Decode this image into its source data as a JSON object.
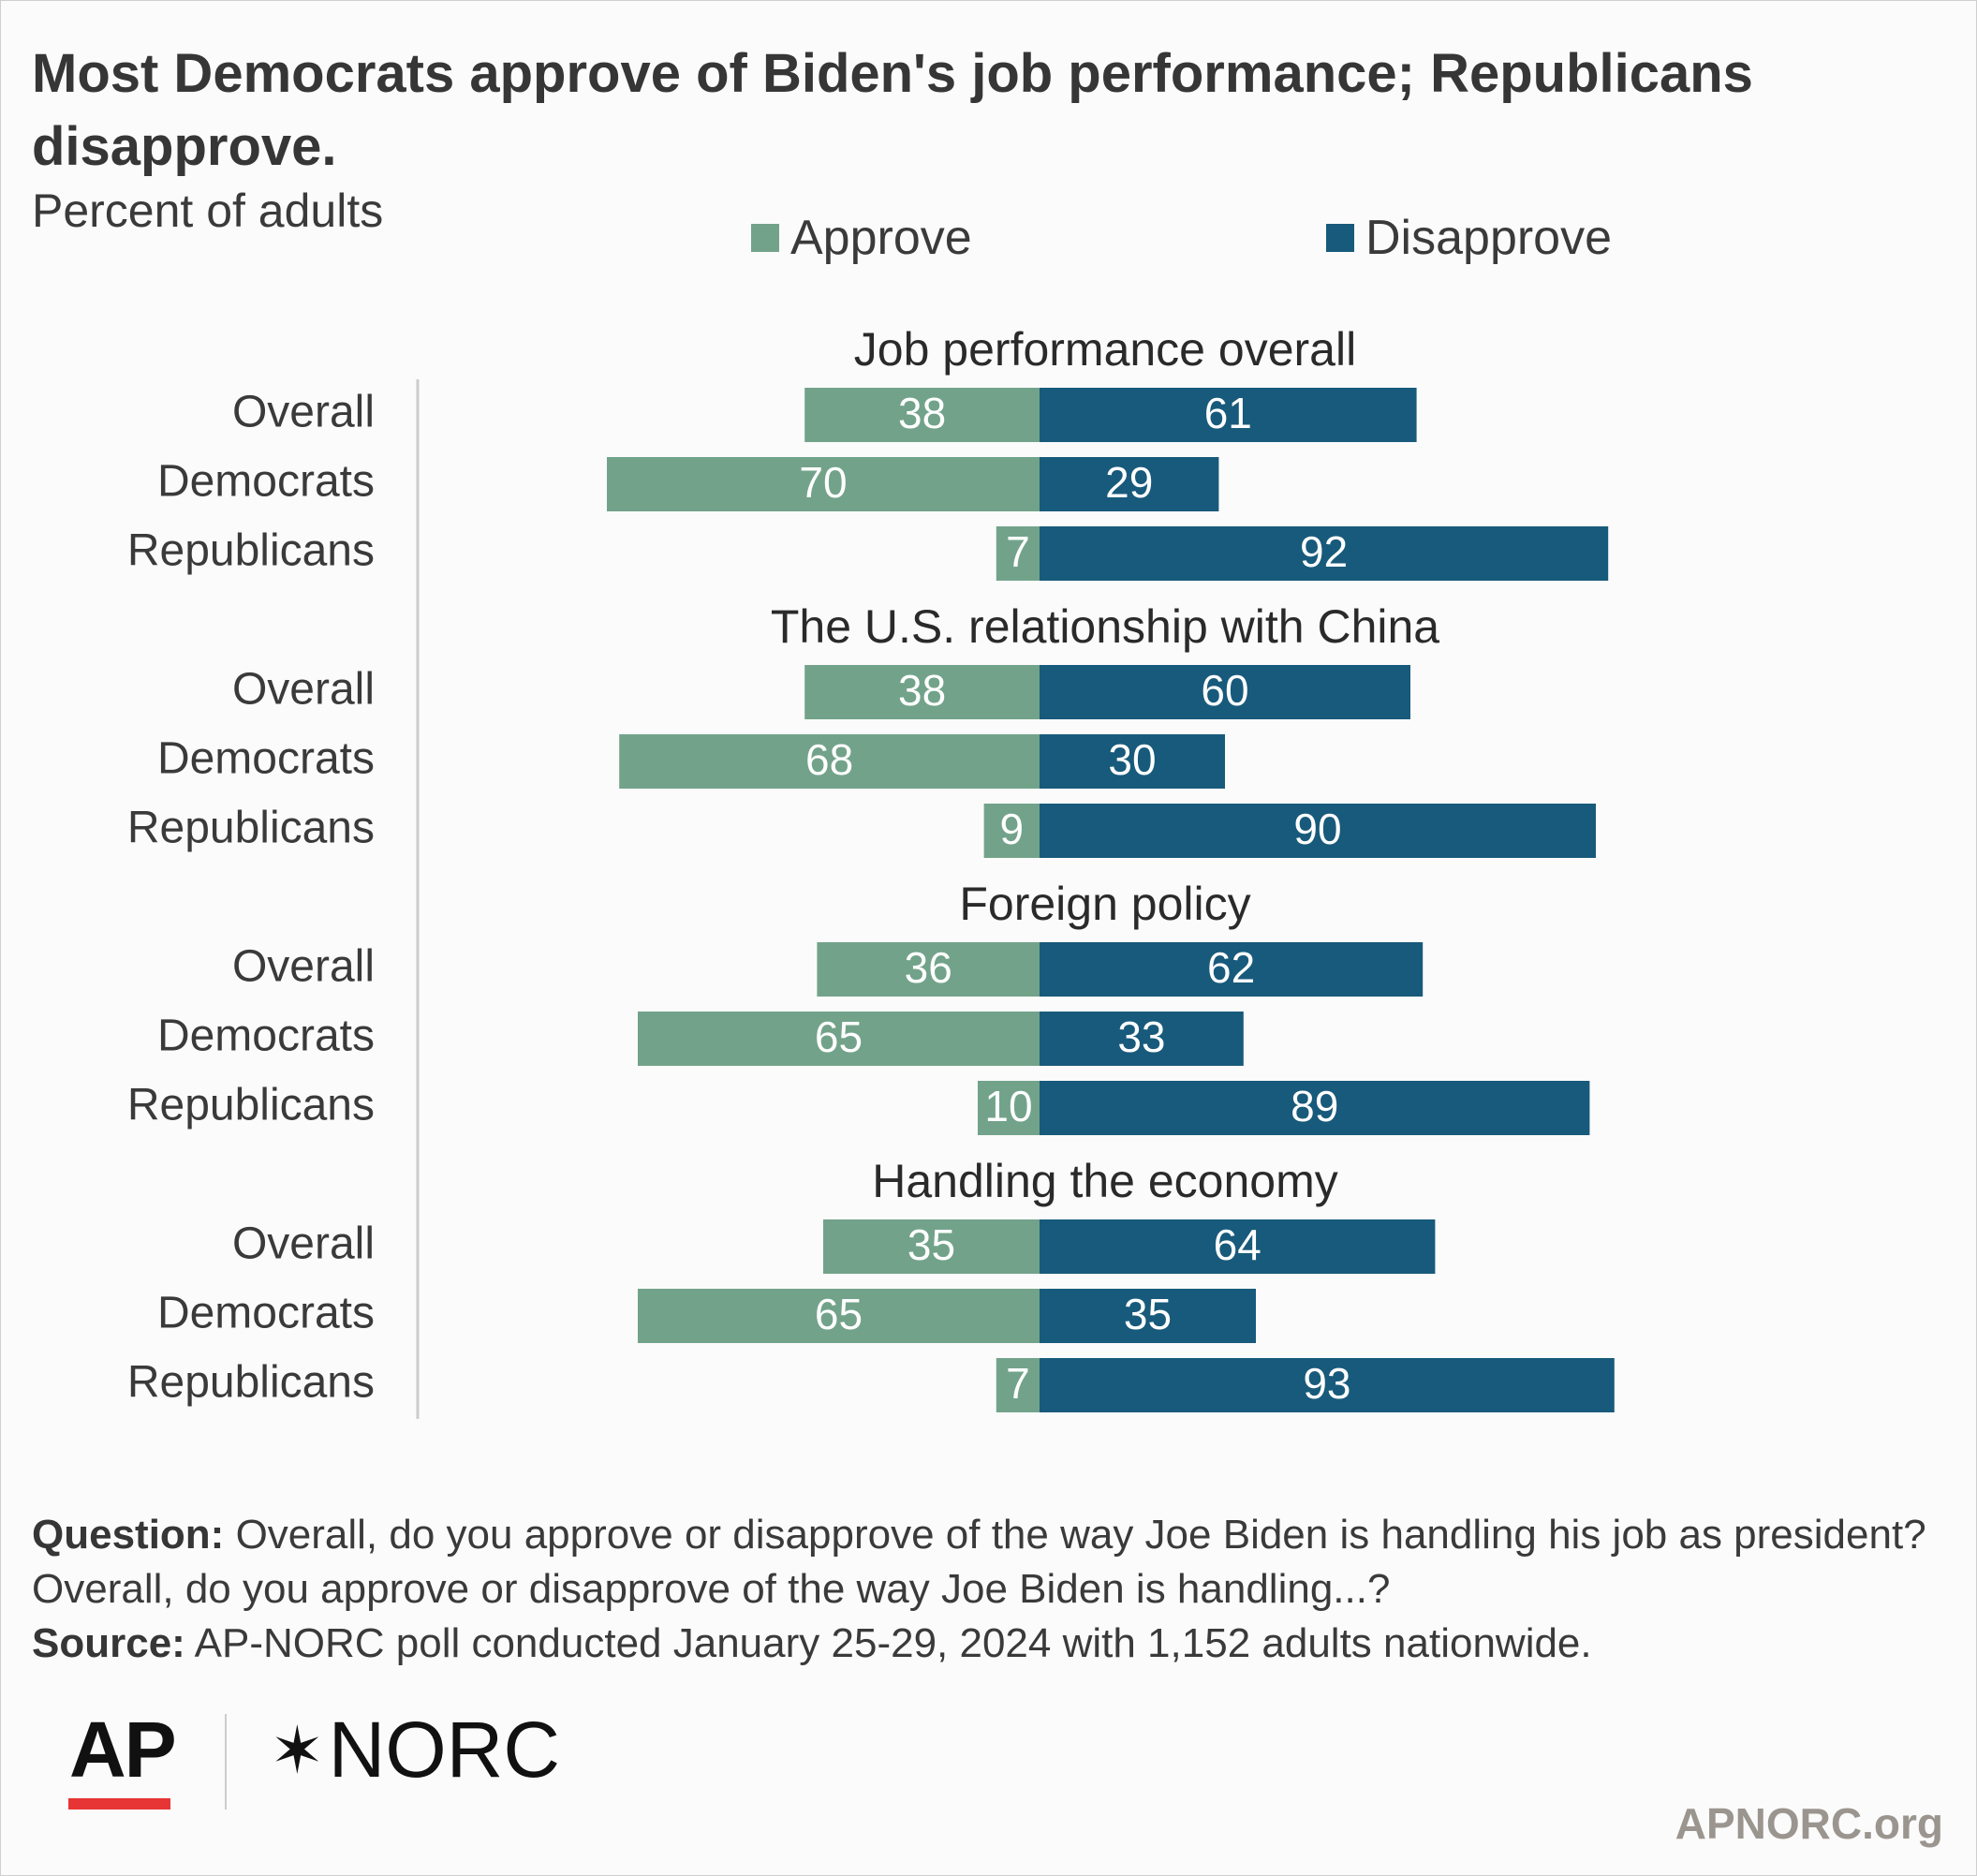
{
  "title": "Most Democrats approve of Biden's job performance; Republicans disapprove.",
  "subtitle": "Percent of adults",
  "legend": [
    {
      "label": "Approve",
      "color": "#72a38a"
    },
    {
      "label": "Disapprove",
      "color": "#185a7b"
    }
  ],
  "colors": {
    "approve": "#72a38a",
    "disapprove": "#185a7b",
    "bar_label": "#ffffff",
    "axis": "#cccccc"
  },
  "chart_data": {
    "type": "bar",
    "orientation": "horizontal-diverging",
    "series_names": [
      "Approve",
      "Disapprove"
    ],
    "groups": [
      {
        "title": "Job performance overall",
        "rows": [
          {
            "label": "Overall",
            "approve": 38,
            "disapprove": 61
          },
          {
            "label": "Democrats",
            "approve": 70,
            "disapprove": 29
          },
          {
            "label": "Republicans",
            "approve": 7,
            "disapprove": 92
          }
        ]
      },
      {
        "title": "The U.S. relationship with China",
        "rows": [
          {
            "label": "Overall",
            "approve": 38,
            "disapprove": 60
          },
          {
            "label": "Democrats",
            "approve": 68,
            "disapprove": 30
          },
          {
            "label": "Republicans",
            "approve": 9,
            "disapprove": 90
          }
        ]
      },
      {
        "title": "Foreign policy",
        "rows": [
          {
            "label": "Overall",
            "approve": 36,
            "disapprove": 62
          },
          {
            "label": "Democrats",
            "approve": 65,
            "disapprove": 33
          },
          {
            "label": "Republicans",
            "approve": 10,
            "disapprove": 89
          }
        ]
      },
      {
        "title": "Handling the economy",
        "rows": [
          {
            "label": "Overall",
            "approve": 35,
            "disapprove": 64
          },
          {
            "label": "Democrats",
            "approve": 65,
            "disapprove": 35
          },
          {
            "label": "Republicans",
            "approve": 7,
            "disapprove": 93
          }
        ]
      }
    ]
  },
  "notes": {
    "question_label": "Question:",
    "question_text": "Overall, do you approve or disapprove of the way Joe Biden is handling his job as president? Overall, do you approve or disapprove of the way Joe Biden is handling...?",
    "source_label": "Source:",
    "source_text": "AP-NORC poll conducted January 25-29, 2024 with 1,152 adults nationwide."
  },
  "logos": {
    "ap": "AP",
    "norc_star": "✶",
    "norc": "NORC"
  },
  "footer_url": "APNORC.org"
}
